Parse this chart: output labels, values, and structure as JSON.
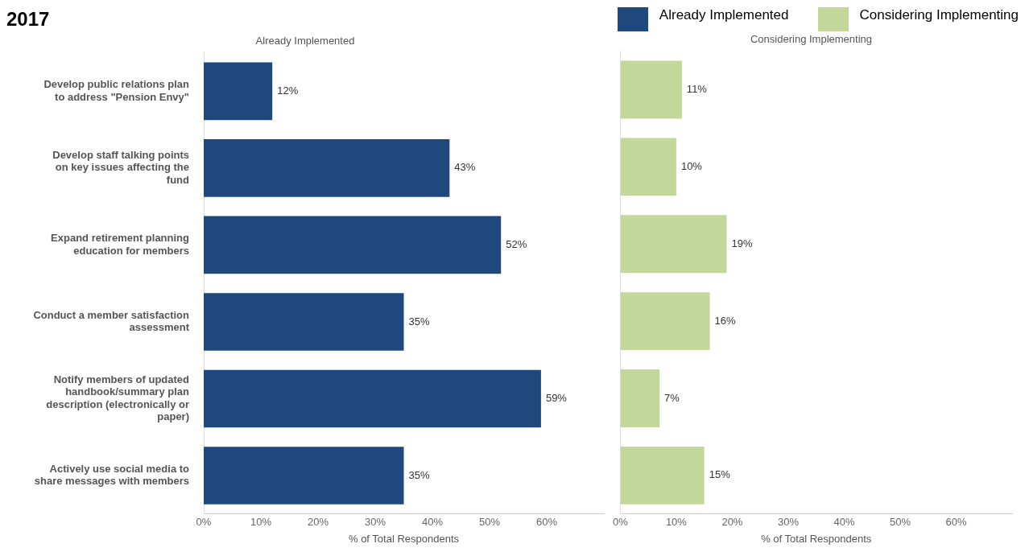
{
  "chart_data": [
    {
      "type": "bar",
      "orientation": "horizontal",
      "title": "2017",
      "subtitle": "Already Implemented",
      "xlabel": "% of Total Respondents",
      "categories": [
        "Develop public relations plan to address \"Pension Envy\"",
        "Develop staff talking points on key issues affecting the fund",
        "Expand retirement planning education for members",
        "Conduct a member satisfaction assessment",
        "Notify members of updated handbook/summary plan description (electronically or paper)",
        "Actively use social media to share messages with members"
      ],
      "series": [
        {
          "name": "Already Implemented",
          "color": "#1f497d",
          "values": [
            12,
            43,
            52,
            35,
            59,
            35
          ],
          "value_labels": [
            "12%",
            "43%",
            "52%",
            "35%",
            "59%",
            "35%"
          ]
        }
      ],
      "xlim": [
        0,
        70
      ],
      "xticks": [
        {
          "value": 0,
          "label": "0%"
        },
        {
          "value": 10,
          "label": "10%"
        },
        {
          "value": 20,
          "label": "20%"
        },
        {
          "value": 30,
          "label": "30%"
        },
        {
          "value": 40,
          "label": "40%"
        },
        {
          "value": 50,
          "label": "50%"
        },
        {
          "value": 60,
          "label": "60%"
        }
      ],
      "legend": "top right"
    },
    {
      "type": "bar",
      "orientation": "horizontal",
      "subtitle": "Considering Implementing",
      "xlabel": "% of Total Respondents",
      "categories": [
        null,
        null,
        null,
        null,
        null,
        null
      ],
      "series": [
        {
          "name": "Considering Implementing",
          "color": "#c4d79b",
          "values": [
            11,
            10,
            19,
            16,
            7,
            15
          ],
          "value_labels": [
            "11%",
            "10%",
            "19%",
            "16%",
            "7%",
            "15%"
          ]
        }
      ],
      "xlim": [
        0,
        70
      ],
      "xticks": [
        {
          "value": 0,
          "label": "0%"
        },
        {
          "value": 10,
          "label": "10%"
        },
        {
          "value": 20,
          "label": "20%"
        },
        {
          "value": 30,
          "label": "30%"
        },
        {
          "value": 40,
          "label": "40%"
        },
        {
          "value": 50,
          "label": "50%"
        },
        {
          "value": 60,
          "label": "60%"
        }
      ],
      "tick_labels": "x",
      "legend": "top right"
    }
  ]
}
